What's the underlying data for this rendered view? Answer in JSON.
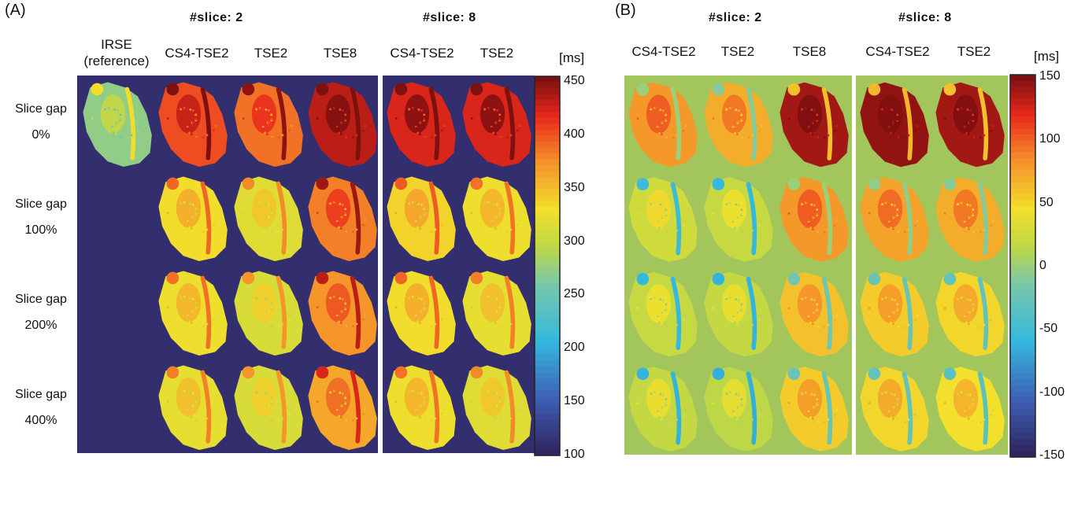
{
  "panel_a": {
    "label": "(A)",
    "group_titles": [
      "#slice: 2",
      "#slice: 8"
    ],
    "columns": [
      "IRSE (reference)",
      "CS4-TSE2",
      "TSE2",
      "TSE8",
      "CS4-TSE2",
      "TSE2"
    ],
    "column_header_irse_line1": "IRSE",
    "column_header_irse_line2": "(reference)",
    "rows": [
      {
        "line1": "Slice gap",
        "line2": "0%"
      },
      {
        "line1": "Slice gap",
        "line2": "100%"
      },
      {
        "line1": "Slice gap",
        "line2": "200%"
      },
      {
        "line1": "Slice gap",
        "line2": "400%"
      }
    ],
    "colorbar": {
      "unit": "[ms]",
      "min": 100,
      "max": 450,
      "ticks": [
        "450",
        "400",
        "350",
        "300",
        "250",
        "200",
        "150",
        "100"
      ]
    },
    "background_color": "#332f6e",
    "note_mean_T1_ms_levels": [
      [
        270,
        400,
        385,
        430,
        420,
        420
      ],
      [
        null,
        330,
        315,
        380,
        335,
        325
      ],
      [
        null,
        325,
        310,
        370,
        330,
        320
      ],
      [
        null,
        320,
        310,
        360,
        325,
        315
      ]
    ]
  },
  "panel_b": {
    "label": "(B)",
    "group_titles": [
      "#slice: 2",
      "#slice: 8"
    ],
    "columns": [
      "CS4-TSE2",
      "TSE2",
      "TSE8",
      "CS4-TSE2",
      "TSE2"
    ],
    "colorbar": {
      "unit": "[ms]",
      "min": -150,
      "max": 150,
      "ticks": [
        "150",
        "100",
        "50",
        "0",
        "-50",
        "-100",
        "-150"
      ]
    },
    "background_color": "#a3c65c",
    "note_mean_difference_ms_levels": [
      [
        80,
        70,
        140,
        145,
        140
      ],
      [
        25,
        20,
        80,
        75,
        70
      ],
      [
        20,
        18,
        60,
        55,
        50
      ],
      [
        18,
        15,
        55,
        50,
        45
      ]
    ]
  },
  "colors": {
    "jet_dark_red": "#7f1010",
    "jet_red": "#e8281c",
    "jet_orange": "#f5902a",
    "jet_yellow": "#f2e02c",
    "jet_green_yellow": "#a3c65c",
    "jet_cyan": "#34b8de",
    "jet_blue": "#3d5db3",
    "jet_navy": "#2f2660"
  }
}
